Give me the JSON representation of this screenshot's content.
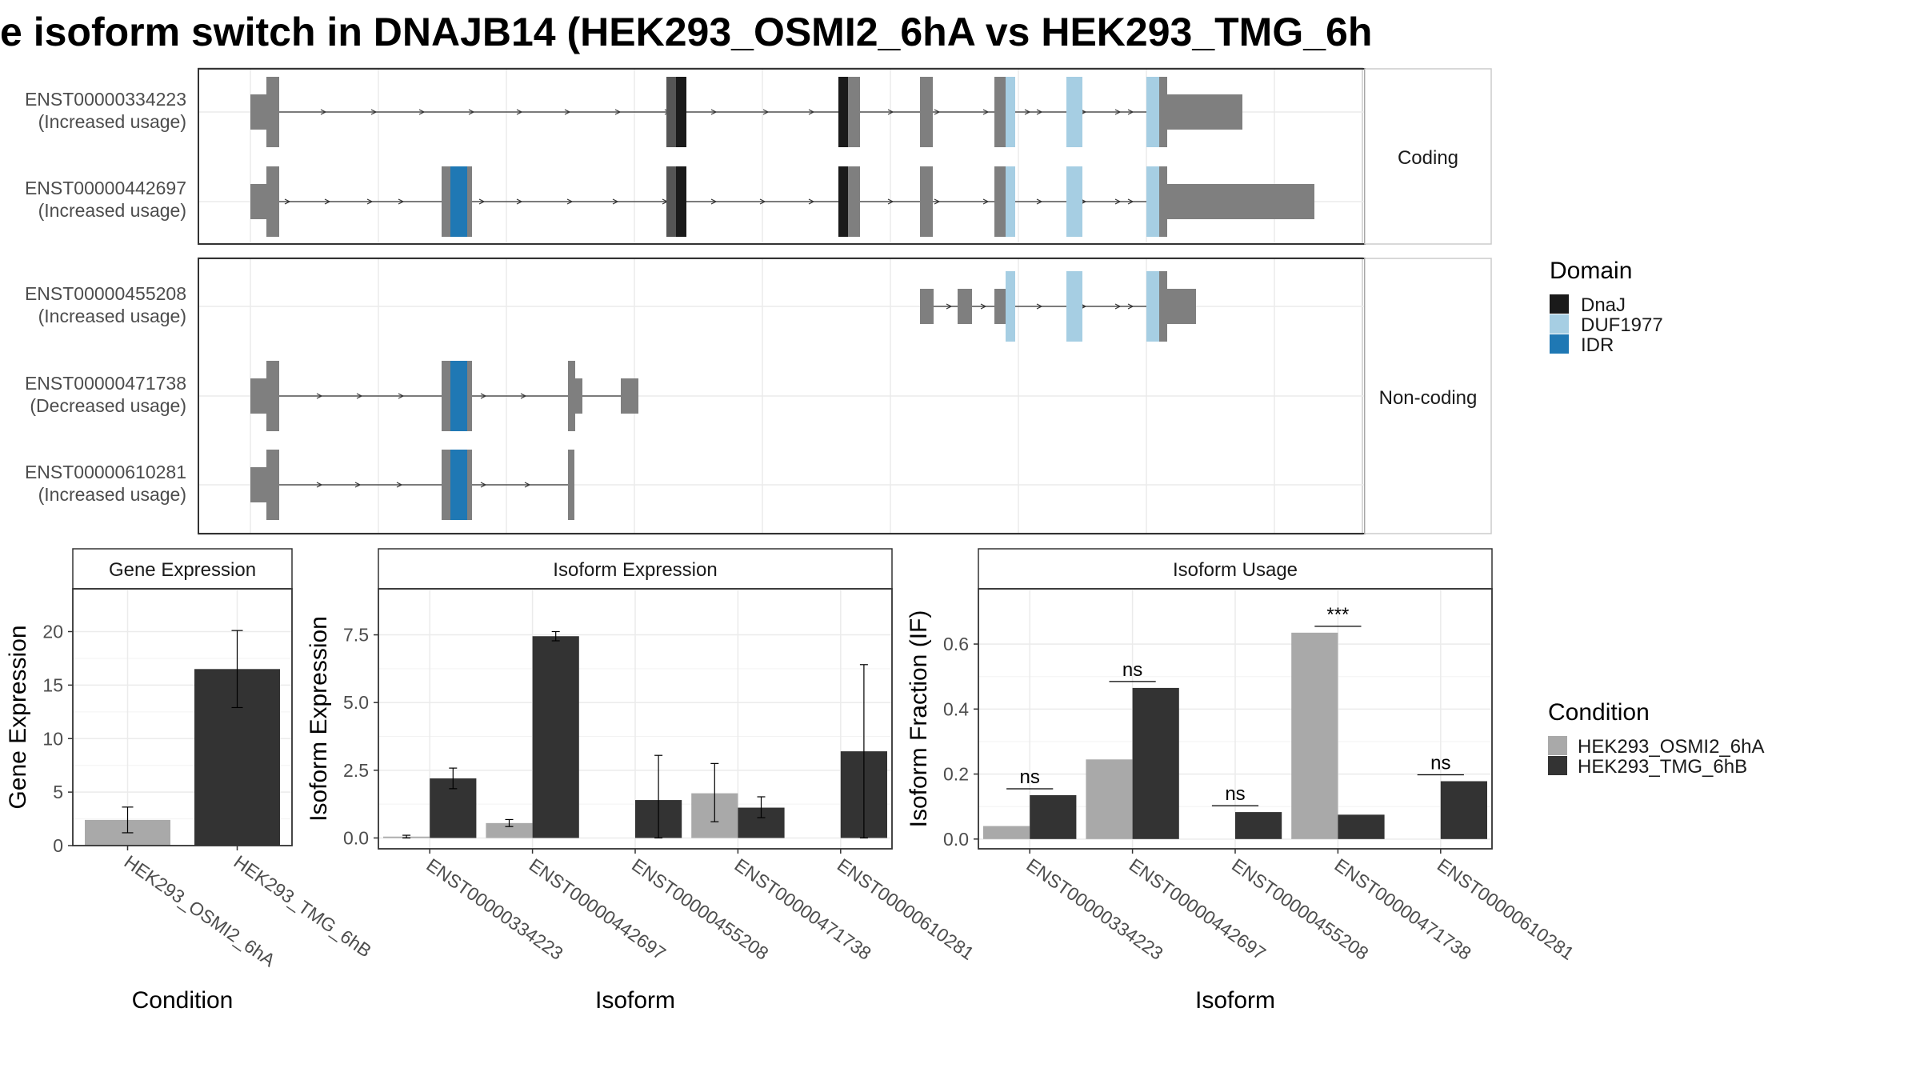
{
  "title": "e isoform switch in DNAJB14 (HEK293_OSMI2_6hA vs HEK293_TMG_6h",
  "colors": {
    "exon": "#7f7f7f",
    "DnaJ": "#1a1a1a",
    "DUF1977": "#a6cee3",
    "IDR": "#1f78b4",
    "cond_a": "#a9a9a9",
    "cond_b": "#333333",
    "grid": "#ebebeb",
    "panel_border": "#333333"
  },
  "structure": {
    "coding_label": "Coding",
    "noncoding_label": "Non-coding",
    "transcripts": [
      {
        "id": "ENST00000334223",
        "usage": "(Increased usage)",
        "group": "coding"
      },
      {
        "id": "ENST00000442697",
        "usage": "(Increased usage)",
        "group": "coding"
      },
      {
        "id": "ENST00000455208",
        "usage": "(Increased usage)",
        "group": "noncoding"
      },
      {
        "id": "ENST00000471738",
        "usage": "(Decreased usage)",
        "group": "noncoding"
      },
      {
        "id": "ENST00000610281",
        "usage": "(Increased usage)",
        "group": "noncoding"
      }
    ]
  },
  "legend_domain": {
    "title": "Domain",
    "items": [
      {
        "label": "DnaJ",
        "color": "#1a1a1a"
      },
      {
        "label": "DUF1977",
        "color": "#a6cee3"
      },
      {
        "label": "IDR",
        "color": "#1f78b4"
      }
    ]
  },
  "legend_condition": {
    "title": "Condition",
    "items": [
      {
        "label": "HEK293_OSMI2_6hA",
        "color": "#a9a9a9"
      },
      {
        "label": "HEK293_TMG_6hB",
        "color": "#333333"
      }
    ]
  },
  "chart_data": [
    {
      "type": "bar",
      "strip": "Gene Expression",
      "xlabel": "Condition",
      "ylabel": "Gene Expression",
      "categories": [
        "HEK293_OSMI2_6hA",
        "HEK293_TMG_6hB"
      ],
      "values": [
        2.4,
        16.5
      ],
      "error_low": [
        1.2,
        12.9
      ],
      "error_high": [
        3.6,
        20.1
      ],
      "ylim": [
        0,
        24
      ],
      "yticks": [
        "0",
        "5",
        "10",
        "15",
        "20"
      ]
    },
    {
      "type": "bar",
      "strip": "Isoform Expression",
      "xlabel": "Isoform",
      "ylabel": "Isoform Expression",
      "categories": [
        "ENST00000334223",
        "ENST00000442697",
        "ENST00000455208",
        "ENST00000471738",
        "ENST00000610281"
      ],
      "series": [
        {
          "name": "HEK293_OSMI2_6hA",
          "values": [
            0.05,
            0.55,
            0.0,
            1.65,
            0.0
          ],
          "error_low": [
            0.0,
            0.42,
            0.0,
            0.6,
            0.0
          ],
          "error_high": [
            0.1,
            0.68,
            0.0,
            2.75,
            0.0
          ]
        },
        {
          "name": "HEK293_TMG_6hB",
          "values": [
            2.2,
            7.45,
            1.4,
            1.12,
            3.2
          ],
          "error_low": [
            1.82,
            7.28,
            0.0,
            0.75,
            0.0
          ],
          "error_high": [
            2.58,
            7.62,
            3.05,
            1.52,
            6.4
          ]
        }
      ],
      "ylim": [
        -0.4,
        9.2
      ],
      "yticks": [
        "0.0",
        "2.5",
        "5.0",
        "7.5"
      ]
    },
    {
      "type": "bar",
      "strip": "Isoform Usage",
      "xlabel": "Isoform",
      "ylabel": "Isoform Fraction (IF)",
      "categories": [
        "ENST00000334223",
        "ENST00000442697",
        "ENST00000455208",
        "ENST00000471738",
        "ENST00000610281"
      ],
      "series": [
        {
          "name": "HEK293_OSMI2_6hA",
          "values": [
            0.04,
            0.245,
            0.0,
            0.635,
            0.0
          ]
        },
        {
          "name": "HEK293_TMG_6hB",
          "values": [
            0.135,
            0.465,
            0.083,
            0.075,
            0.178
          ]
        }
      ],
      "significance": [
        "ns",
        "ns",
        "ns",
        "***",
        "ns"
      ],
      "ylim": [
        -0.03,
        0.77
      ],
      "yticks": [
        "0.0",
        "0.2",
        "0.4",
        "0.6"
      ]
    }
  ]
}
